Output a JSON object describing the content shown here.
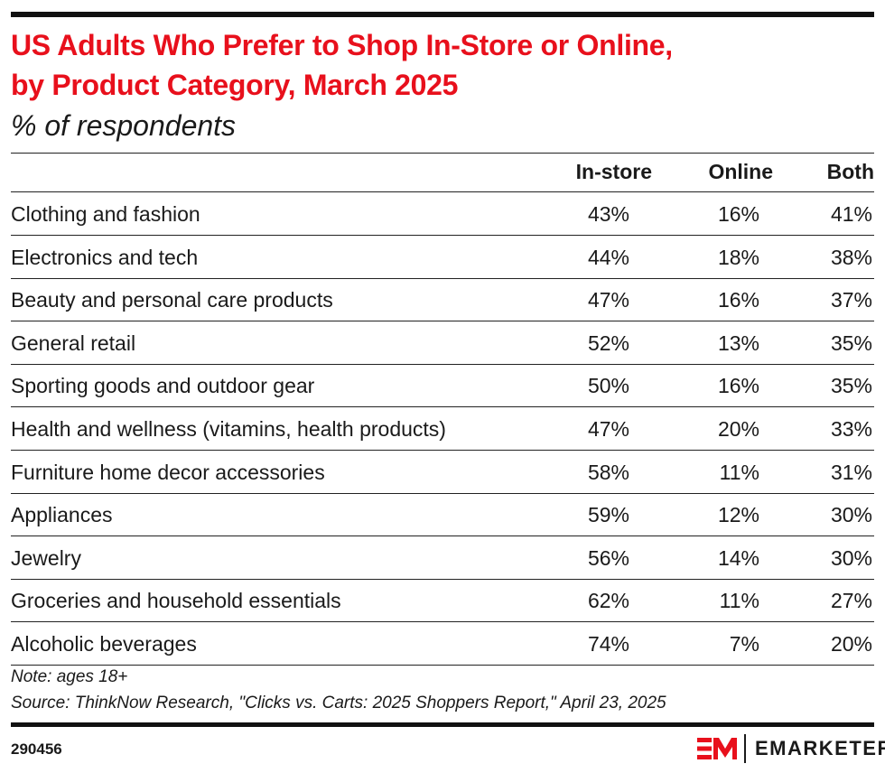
{
  "title_line1": "US Adults Who Prefer to Shop In-Store or Online,",
  "title_line2": "by Product Category, March 2025",
  "subtitle": "% of respondents",
  "chart_data": {
    "type": "table",
    "title": "US Adults Who Prefer to Shop In-Store or Online, by Product Category, March 2025",
    "subtitle": "% of respondents",
    "columns": [
      "In-store",
      "Online",
      "Both"
    ],
    "rows": [
      {
        "category": "Clothing and fashion",
        "values": [
          "43%",
          "16%",
          "41%"
        ]
      },
      {
        "category": "Electronics and tech",
        "values": [
          "44%",
          "18%",
          "38%"
        ]
      },
      {
        "category": "Beauty and personal care products",
        "values": [
          "47%",
          "16%",
          "37%"
        ]
      },
      {
        "category": "General retail",
        "values": [
          "52%",
          "13%",
          "35%"
        ]
      },
      {
        "category": "Sporting goods and outdoor gear",
        "values": [
          "50%",
          "16%",
          "35%"
        ]
      },
      {
        "category": "Health and wellness (vitamins, health products)",
        "values": [
          "47%",
          "20%",
          "33%"
        ]
      },
      {
        "category": "Furniture home decor accessories",
        "values": [
          "58%",
          "11%",
          "31%"
        ]
      },
      {
        "category": "Appliances",
        "values": [
          "59%",
          "12%",
          "30%"
        ]
      },
      {
        "category": "Jewelry",
        "values": [
          "56%",
          "14%",
          "30%"
        ]
      },
      {
        "category": "Groceries and household essentials",
        "values": [
          "62%",
          "11%",
          "27%"
        ]
      },
      {
        "category": "Alcoholic beverages",
        "values": [
          "74%",
          "7%",
          "20%"
        ]
      }
    ]
  },
  "note": "Note: ages 18+",
  "source": "Source: ThinkNow Research, \"Clicks vs. Carts: 2025 Shoppers Report,\" April 23, 2025",
  "chart_id": "290456",
  "brand": "EMARKETER",
  "colors": {
    "title": "#e8101c",
    "text": "#1a1a1a",
    "rule": "#222222"
  }
}
